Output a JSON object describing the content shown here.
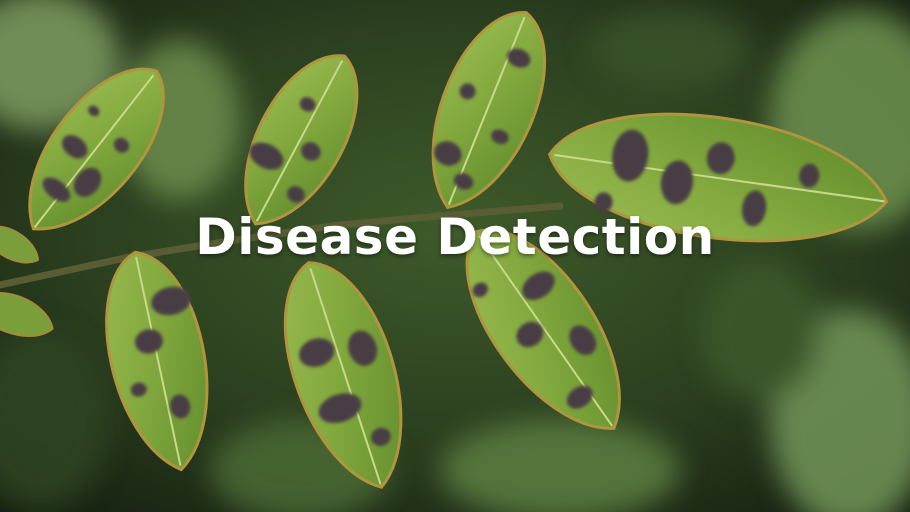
{
  "banner": {
    "title": "Disease Detection"
  },
  "image": {
    "subject": "rose-leaves-black-spot-disease-photo"
  },
  "colors": {
    "leaf_light": "#8fb346",
    "leaf_mid": "#6f9a34",
    "leaf_edge": "#a58a3a",
    "spot": "#4a3d44",
    "background_dark": "#1d2a17",
    "title_text": "#ffffff"
  }
}
